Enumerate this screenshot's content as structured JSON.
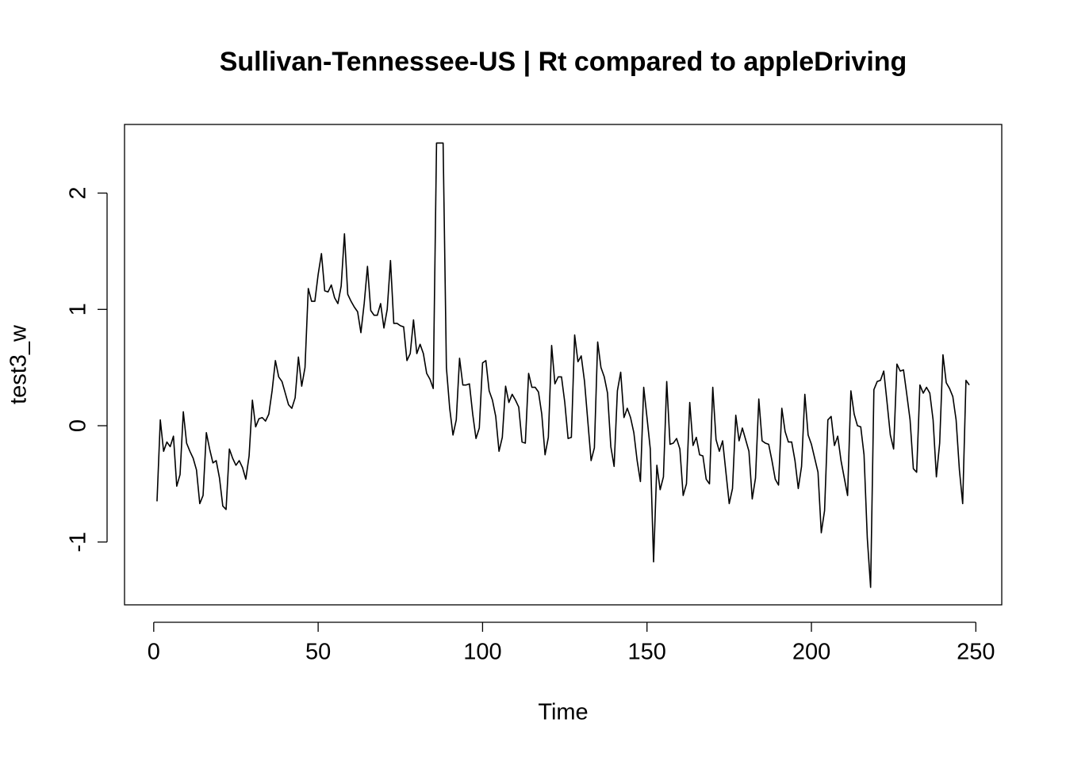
{
  "chart_data": {
    "type": "line",
    "title": "Sullivan-Tennessee-US | Rt compared to appleDriving",
    "x_label": "Time",
    "y_label": "test3_w",
    "color": "#000000",
    "xlim": [
      -8.88,
      257.88
    ],
    "xticks": [
      0,
      50,
      100,
      150,
      200,
      250
    ],
    "ylim": [
      -1.54,
      2.59
    ],
    "yticks": [
      -1,
      0,
      1,
      2
    ],
    "x": [
      1,
      2,
      3,
      4,
      5,
      6,
      7,
      8,
      9,
      10,
      11,
      12,
      13,
      14,
      15,
      16,
      17,
      18,
      19,
      20,
      21,
      22,
      23,
      24,
      25,
      26,
      27,
      28,
      29,
      30,
      31,
      32,
      33,
      34,
      35,
      36,
      37,
      38,
      39,
      40,
      41,
      42,
      43,
      44,
      45,
      46,
      47,
      48,
      49,
      50,
      51,
      52,
      53,
      54,
      55,
      56,
      57,
      58,
      59,
      60,
      61,
      62,
      63,
      64,
      65,
      66,
      67,
      68,
      69,
      70,
      71,
      72,
      73,
      74,
      75,
      76,
      77,
      78,
      79,
      80,
      81,
      82,
      83,
      84,
      85,
      86,
      87,
      88,
      89,
      90,
      91,
      92,
      93,
      94,
      95,
      96,
      97,
      98,
      99,
      100,
      101,
      102,
      103,
      104,
      105,
      106,
      107,
      108,
      109,
      110,
      111,
      112,
      113,
      114,
      115,
      116,
      117,
      118,
      119,
      120,
      121,
      122,
      123,
      124,
      125,
      126,
      127,
      128,
      129,
      130,
      131,
      132,
      133,
      134,
      135,
      136,
      137,
      138,
      139,
      140,
      141,
      142,
      143,
      144,
      145,
      146,
      147,
      148,
      149,
      150,
      151,
      152,
      153,
      154,
      155,
      156,
      157,
      158,
      159,
      160,
      161,
      162,
      163,
      164,
      165,
      166,
      167,
      168,
      169,
      170,
      171,
      172,
      173,
      174,
      175,
      176,
      177,
      178,
      179,
      180,
      181,
      182,
      183,
      184,
      185,
      186,
      187,
      188,
      189,
      190,
      191,
      192,
      193,
      194,
      195,
      196,
      197,
      198,
      199,
      200,
      201,
      202,
      203,
      204,
      205,
      206,
      207,
      208,
      209,
      210,
      211,
      212,
      213,
      214,
      215,
      216,
      217,
      218,
      219,
      220,
      221,
      222,
      223,
      224,
      225,
      226,
      227,
      228,
      229,
      230,
      231,
      232,
      233,
      234,
      235,
      236,
      237,
      238,
      239,
      240,
      241,
      242,
      243,
      244,
      245,
      246,
      247,
      248
    ],
    "values": [
      -0.65,
      0.05,
      -0.22,
      -0.14,
      -0.18,
      -0.09,
      -0.52,
      -0.42,
      0.12,
      -0.15,
      -0.22,
      -0.28,
      -0.38,
      -0.67,
      -0.6,
      -0.06,
      -0.2,
      -0.32,
      -0.3,
      -0.45,
      -0.69,
      -0.72,
      -0.2,
      -0.28,
      -0.34,
      -0.3,
      -0.36,
      -0.46,
      -0.26,
      0.22,
      -0.01,
      0.06,
      0.07,
      0.04,
      0.1,
      0.3,
      0.56,
      0.42,
      0.38,
      0.28,
      0.18,
      0.15,
      0.24,
      0.59,
      0.34,
      0.5,
      1.18,
      1.07,
      1.07,
      1.3,
      1.48,
      1.16,
      1.15,
      1.21,
      1.1,
      1.05,
      1.2,
      1.65,
      1.13,
      1.07,
      1.02,
      0.98,
      0.8,
      1.05,
      1.37,
      0.99,
      0.95,
      0.95,
      1.05,
      0.84,
      1.0,
      1.42,
      0.88,
      0.88,
      0.86,
      0.85,
      0.56,
      0.62,
      0.91,
      0.62,
      0.7,
      0.62,
      0.45,
      0.4,
      0.32,
      2.43,
      2.43,
      2.43,
      0.5,
      0.15,
      -0.08,
      0.05,
      0.58,
      0.35,
      0.35,
      0.36,
      0.1,
      -0.11,
      -0.02,
      0.54,
      0.56,
      0.3,
      0.22,
      0.08,
      -0.22,
      -0.1,
      0.34,
      0.2,
      0.27,
      0.22,
      0.16,
      -0.14,
      -0.15,
      0.45,
      0.33,
      0.33,
      0.29,
      0.1,
      -0.25,
      -0.1,
      0.69,
      0.36,
      0.42,
      0.42,
      0.2,
      -0.11,
      -0.1,
      0.78,
      0.55,
      0.6,
      0.38,
      0.04,
      -0.3,
      -0.19,
      0.72,
      0.5,
      0.42,
      0.28,
      -0.18,
      -0.35,
      0.3,
      0.46,
      0.07,
      0.15,
      0.07,
      -0.06,
      -0.3,
      -0.48,
      0.33,
      0.07,
      -0.2,
      -1.17,
      -0.34,
      -0.55,
      -0.44,
      0.38,
      -0.16,
      -0.15,
      -0.11,
      -0.2,
      -0.6,
      -0.5,
      0.2,
      -0.17,
      -0.1,
      -0.25,
      -0.26,
      -0.46,
      -0.5,
      0.33,
      -0.12,
      -0.22,
      -0.13,
      -0.4,
      -0.67,
      -0.54,
      0.09,
      -0.13,
      -0.02,
      -0.12,
      -0.22,
      -0.63,
      -0.45,
      0.23,
      -0.13,
      -0.15,
      -0.16,
      -0.3,
      -0.46,
      -0.51,
      0.15,
      -0.05,
      -0.14,
      -0.14,
      -0.3,
      -0.54,
      -0.35,
      0.27,
      -0.08,
      -0.16,
      -0.28,
      -0.4,
      -0.92,
      -0.73,
      0.05,
      0.08,
      -0.17,
      -0.09,
      -0.3,
      -0.45,
      -0.6,
      0.3,
      0.1,
      0.0,
      -0.01,
      -0.25,
      -0.97,
      -1.39,
      0.31,
      0.38,
      0.39,
      0.47,
      0.2,
      -0.08,
      -0.2,
      0.53,
      0.47,
      0.48,
      0.27,
      0.05,
      -0.37,
      -0.4,
      0.35,
      0.28,
      0.33,
      0.28,
      0.05,
      -0.44,
      -0.15,
      0.61,
      0.37,
      0.32,
      0.25,
      0.05,
      -0.38,
      -0.67,
      0.39,
      0.35
    ]
  }
}
